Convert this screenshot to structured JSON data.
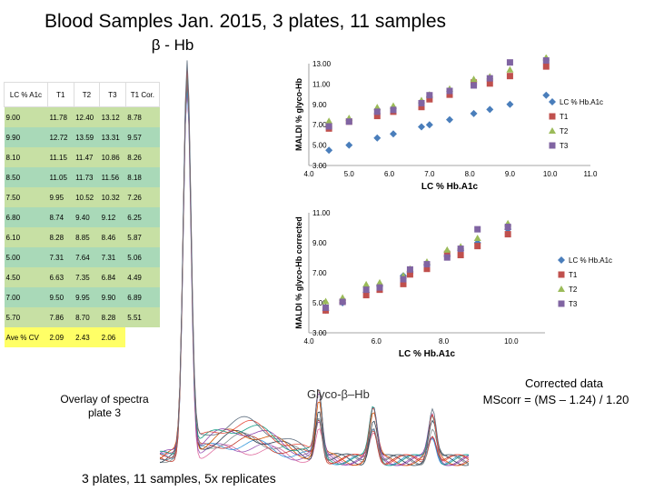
{
  "title": "Blood Samples Jan. 2015, 3 plates, 11 samples",
  "subtitle": "β - Hb",
  "table": {
    "headers": [
      "LC % A1c",
      "T1",
      "T2",
      "T3",
      "T1 Cor."
    ],
    "rows": [
      [
        "9.00",
        "11.78",
        "12.40",
        "13.12",
        "8.78"
      ],
      [
        "9.90",
        "12.72",
        "13.59",
        "13.31",
        "9.57"
      ],
      [
        "8.10",
        "11.15",
        "11.47",
        "10.86",
        "8.26"
      ],
      [
        "8.50",
        "11.05",
        "11.73",
        "11.56",
        "8.18"
      ],
      [
        "7.50",
        "9.95",
        "10.52",
        "10.32",
        "7.26"
      ],
      [
        "6.80",
        "8.74",
        "9.40",
        "9.12",
        "6.25"
      ],
      [
        "6.10",
        "8.28",
        "8.85",
        "8.46",
        "5.87"
      ],
      [
        "5.00",
        "7.31",
        "7.64",
        "7.31",
        "5.06"
      ],
      [
        "4.50",
        "6.63",
        "7.35",
        "6.84",
        "4.49"
      ],
      [
        "7.00",
        "9.50",
        "9.95",
        "9.90",
        "6.89"
      ],
      [
        "5.70",
        "7.86",
        "8.70",
        "8.28",
        "5.51"
      ]
    ],
    "footer": [
      "Ave % CV",
      "2.09",
      "2.43",
      "2.06",
      ""
    ]
  },
  "overlay_label": "Overlay of spectra plate 3",
  "glyco_label": "Glyco-β–Hb",
  "bottom_caption": "3 plates, 11 samples, 5x replicates",
  "corrected_title": "Corrected data",
  "corrected_formula": "MScorr = (MS – 1.24) / 1.20",
  "colors": {
    "lc": "#4a7ebb",
    "t1": "#c0504d",
    "t2": "#9bbb59",
    "t3": "#8064a2"
  },
  "chart_data": [
    {
      "type": "scatter",
      "title": "",
      "xlabel": "LC % Hb.A1c",
      "ylabel": "MALDI % glyco-Hb",
      "xlim": [
        4.0,
        11.0
      ],
      "ylim": [
        3.0,
        13.0
      ],
      "xticks": [
        "4.0",
        "5.0",
        "6.0",
        "7.0",
        "8.0",
        "9.0",
        "10.0",
        "11.0"
      ],
      "yticks": [
        "3.00",
        "5.00",
        "7.00",
        "9.00",
        "11.00",
        "13.00"
      ],
      "legend": [
        "LC % Hb.A1c",
        "T1",
        "T2",
        "T3"
      ],
      "x": [
        4.5,
        5.0,
        5.7,
        6.1,
        6.8,
        7.5,
        7.0,
        8.1,
        8.5,
        9.0,
        9.9
      ],
      "series": [
        {
          "name": "LC % Hb.A1c",
          "values": [
            4.5,
            5.0,
            5.7,
            6.1,
            6.8,
            7.5,
            7.0,
            8.1,
            8.5,
            9.0,
            9.9
          ]
        },
        {
          "name": "T1",
          "values": [
            6.63,
            7.31,
            7.86,
            8.28,
            8.74,
            9.95,
            9.5,
            11.15,
            11.05,
            11.78,
            12.72
          ]
        },
        {
          "name": "T2",
          "values": [
            7.35,
            7.64,
            8.7,
            8.85,
            9.4,
            10.52,
            9.95,
            11.47,
            11.73,
            12.4,
            13.59
          ]
        },
        {
          "name": "T3",
          "values": [
            6.84,
            7.31,
            8.28,
            8.46,
            9.12,
            10.32,
            9.9,
            10.86,
            11.56,
            13.12,
            13.31
          ]
        }
      ]
    },
    {
      "type": "scatter",
      "title": "",
      "xlabel": "LC % Hb.A1c",
      "ylabel": "MALDI % glyco-Hb corrected",
      "xlim": [
        4.0,
        11.0
      ],
      "ylim": [
        3.0,
        11.0
      ],
      "xticks": [
        "4.0",
        "6.0",
        "8.0",
        "10.0"
      ],
      "yticks": [
        "3.00",
        "5.00",
        "7.00",
        "9.00",
        "11.00"
      ],
      "legend": [
        "LC % Hb.A1c",
        "T1",
        "T2",
        "T3"
      ],
      "x": [
        4.5,
        5.0,
        5.7,
        6.1,
        6.8,
        7.5,
        7.0,
        8.1,
        8.5,
        9.0,
        9.9
      ],
      "series": [
        {
          "name": "LC % Hb.A1c",
          "values": [
            4.5,
            5.0,
            5.7,
            6.1,
            6.8,
            7.5,
            7.0,
            8.1,
            8.5,
            9.0,
            9.9
          ]
        },
        {
          "name": "T1",
          "values": [
            4.49,
            5.06,
            5.51,
            5.87,
            6.25,
            7.26,
            6.89,
            8.26,
            8.18,
            8.78,
            9.57
          ]
        },
        {
          "name": "T2",
          "values": [
            5.09,
            5.33,
            6.22,
            6.34,
            6.8,
            7.73,
            7.26,
            8.52,
            8.74,
            9.3,
            10.29
          ]
        },
        {
          "name": "T3",
          "values": [
            4.67,
            5.06,
            5.87,
            6.02,
            6.57,
            7.57,
            7.22,
            8.02,
            8.6,
            9.9,
            10.06
          ]
        }
      ]
    }
  ]
}
